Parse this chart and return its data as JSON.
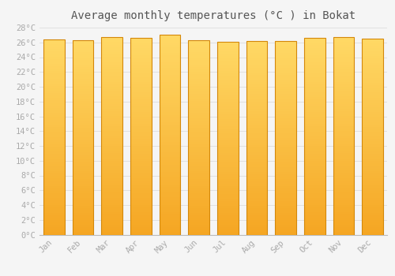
{
  "title": "Average monthly temperatures (°C ) in Bokat",
  "months": [
    "Jan",
    "Feb",
    "Mar",
    "Apr",
    "May",
    "Jun",
    "Jul",
    "Aug",
    "Sep",
    "Oct",
    "Nov",
    "Dec"
  ],
  "values": [
    26.4,
    26.3,
    26.7,
    26.6,
    27.0,
    26.3,
    26.1,
    26.2,
    26.2,
    26.6,
    26.7,
    26.5
  ],
  "bar_color_bottom": "#F5A623",
  "bar_color_top": "#FFD966",
  "bar_edge_color": "#D4880A",
  "background_color": "#F5F5F5",
  "grid_color": "#DDDDDD",
  "ylim": [
    0,
    28
  ],
  "ytick_step": 2,
  "title_fontsize": 10,
  "tick_fontsize": 7.5,
  "tick_color": "#AAAAAA",
  "title_color": "#555555"
}
